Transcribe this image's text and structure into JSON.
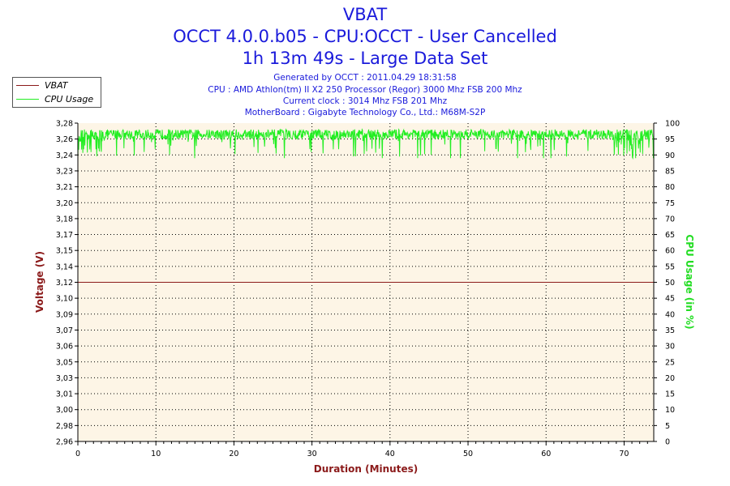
{
  "header": {
    "title": "VBAT",
    "subtitle1": "OCCT 4.0.0.b05 - CPU:OCCT - User Cancelled",
    "subtitle2": "1h 13m 49s - Large Data Set"
  },
  "info": {
    "generated": "Generated by OCCT : 2011.04.29 18:31:58",
    "cpu": "CPU : AMD Athlon(tm) II X2 250 Processor (Regor) 3000 Mhz FSB 200 Mhz",
    "clock": "Current clock : 3014 Mhz FSB 201 Mhz",
    "motherboard": "MotherBoard : Gigabyte Technology Co., Ltd.: M68M-S2P"
  },
  "legend": {
    "items": [
      {
        "label": "VBAT",
        "color": "#8b1a1a"
      },
      {
        "label": "CPU Usage",
        "color": "#22ee22"
      }
    ]
  },
  "colors": {
    "plot_bg": "#fdf5e6",
    "vbat": "#8b1a1a",
    "cpu": "#22ee22",
    "title": "#1a1adb",
    "grid": "#000000"
  },
  "chart_data": {
    "type": "line",
    "title": "VBAT",
    "xlabel": "Duration (Minutes)",
    "ylabel": "Voltage (V)",
    "ylabel_right": "CPU Usage (in %)",
    "xlim": [
      0,
      73.8
    ],
    "ylim": [
      2.96,
      3.28
    ],
    "ylim_right": [
      0,
      100
    ],
    "x_ticks": [
      "0",
      "10",
      "20",
      "30",
      "40",
      "50",
      "60",
      "70"
    ],
    "x_tick_values": [
      0,
      10,
      20,
      30,
      40,
      50,
      60,
      70
    ],
    "y_ticks": [
      "2,96",
      "2,98",
      "3,00",
      "3,01",
      "3,03",
      "3,05",
      "3,06",
      "3,07",
      "3,09",
      "3,10",
      "3,12",
      "3,14",
      "3,15",
      "3,17",
      "3,18",
      "3,20",
      "3,21",
      "3,23",
      "3,24",
      "3,26",
      "3,28"
    ],
    "y_tick_values_right": [
      0,
      5,
      10,
      15,
      20,
      25,
      30,
      35,
      40,
      45,
      50,
      55,
      60,
      65,
      70,
      75,
      80,
      85,
      90,
      95,
      100
    ],
    "grid": true,
    "legend": "top-left",
    "series": [
      {
        "name": "VBAT",
        "axis": "left",
        "x": [
          0,
          73.8
        ],
        "values": [
          3.12,
          3.12
        ]
      },
      {
        "name": "CPU Usage",
        "axis": "right",
        "x": [
          0,
          73.8
        ],
        "values": [
          96.5,
          96.5
        ],
        "note_range": [
          89,
          99
        ]
      }
    ]
  }
}
